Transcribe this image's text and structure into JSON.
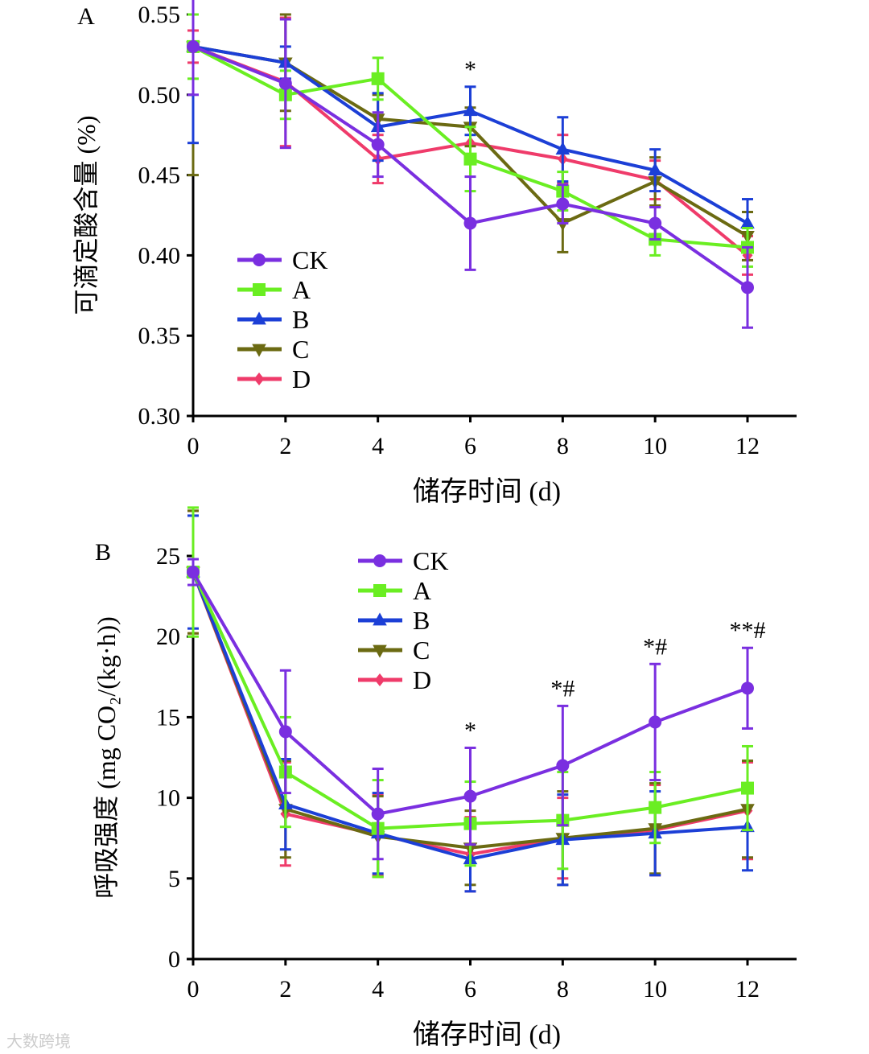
{
  "watermark": "大数跨境",
  "colors": {
    "CK": "#7a2fe0",
    "A": "#6aee22",
    "B": "#1c3fd6",
    "C": "#6b6a12",
    "D": "#ef3b6a"
  },
  "chart_data": [
    {
      "type": "line",
      "panel_label": "A",
      "xlabel": "储存时间 (d)",
      "ylabel": "可滴定酸含量 (%)",
      "x": [
        0,
        2,
        4,
        6,
        8,
        10,
        12
      ],
      "xticks": [
        "0",
        "2",
        "4",
        "6",
        "8",
        "10",
        "12"
      ],
      "ylim": [
        0.3,
        0.55
      ],
      "yticks": [
        "0.30",
        "0.35",
        "0.40",
        "0.45",
        "0.50",
        "0.55"
      ],
      "legend": "lower-left",
      "series": [
        {
          "name": "CK",
          "marker": "circle",
          "values": [
            0.53,
            0.507,
            0.469,
            0.42,
            0.432,
            0.42,
            0.38
          ],
          "errors": [
            0.03,
            0.04,
            0.02,
            0.029,
            0.012,
            0.01,
            0.025
          ]
        },
        {
          "name": "A",
          "marker": "square",
          "values": [
            0.53,
            0.5,
            0.51,
            0.46,
            0.44,
            0.41,
            0.405
          ],
          "errors": [
            0.02,
            0.015,
            0.013,
            0.02,
            0.012,
            0.01,
            0.012
          ]
        },
        {
          "name": "B",
          "marker": "triangle-up",
          "values": [
            0.53,
            0.52,
            0.48,
            0.49,
            0.466,
            0.453,
            0.42
          ],
          "errors": [
            0.06,
            0.01,
            0.021,
            0.015,
            0.02,
            0.013,
            0.015
          ]
        },
        {
          "name": "C",
          "marker": "triangle-down",
          "values": [
            0.53,
            0.52,
            0.485,
            0.48,
            0.42,
            0.446,
            0.412
          ],
          "errors": [
            0.08,
            0.03,
            0.015,
            0.012,
            0.018,
            0.015,
            0.015
          ]
        },
        {
          "name": "D",
          "marker": "diamond",
          "values": [
            0.53,
            0.508,
            0.46,
            0.47,
            0.46,
            0.447,
            0.4
          ],
          "errors": [
            0.01,
            0.04,
            0.015,
            0.01,
            0.015,
            0.012,
            0.012
          ]
        }
      ],
      "annotations": [
        {
          "x": 6,
          "text": "*"
        }
      ]
    },
    {
      "type": "line",
      "panel_label": "B",
      "xlabel": "储存时间 (d)",
      "ylabel": "呼吸强度 (mg CO₂/(kg·h))",
      "x": [
        0,
        2,
        4,
        6,
        8,
        10,
        12
      ],
      "xticks": [
        "0",
        "2",
        "4",
        "6",
        "8",
        "10",
        "12"
      ],
      "ylim": [
        0,
        25
      ],
      "yticks": [
        "0",
        "5",
        "10",
        "15",
        "20",
        "25"
      ],
      "legend": "top-center",
      "series": [
        {
          "name": "CK",
          "marker": "circle",
          "values": [
            24.0,
            14.1,
            9.0,
            10.1,
            12.0,
            14.7,
            16.8
          ],
          "errors": [
            0.8,
            3.8,
            2.8,
            3.0,
            3.7,
            3.6,
            2.5
          ]
        },
        {
          "name": "A",
          "marker": "square",
          "values": [
            24.0,
            11.6,
            8.1,
            8.4,
            8.6,
            9.4,
            10.6
          ],
          "errors": [
            4.0,
            3.4,
            3.0,
            2.6,
            3.0,
            2.2,
            2.6
          ]
        },
        {
          "name": "B",
          "marker": "triangle-up",
          "values": [
            24.0,
            9.6,
            7.8,
            6.2,
            7.4,
            7.8,
            8.2
          ],
          "errors": [
            3.5,
            2.8,
            2.5,
            2.0,
            2.8,
            2.6,
            2.7
          ]
        },
        {
          "name": "C",
          "marker": "triangle-down",
          "values": [
            24.0,
            9.3,
            7.6,
            6.9,
            7.5,
            8.1,
            9.3
          ],
          "errors": [
            3.8,
            3.0,
            2.5,
            2.3,
            2.9,
            2.8,
            3.0
          ]
        },
        {
          "name": "D",
          "marker": "diamond",
          "values": [
            24.0,
            9.0,
            7.7,
            6.5,
            7.5,
            8.0,
            9.2
          ],
          "errors": [
            3.8,
            3.2,
            2.5,
            2.3,
            2.5,
            2.8,
            3.0
          ]
        }
      ],
      "annotations": [
        {
          "x": 6,
          "text": "*"
        },
        {
          "x": 8,
          "text": "*#"
        },
        {
          "x": 10,
          "text": "*#"
        },
        {
          "x": 12,
          "text": "**#"
        }
      ]
    }
  ]
}
